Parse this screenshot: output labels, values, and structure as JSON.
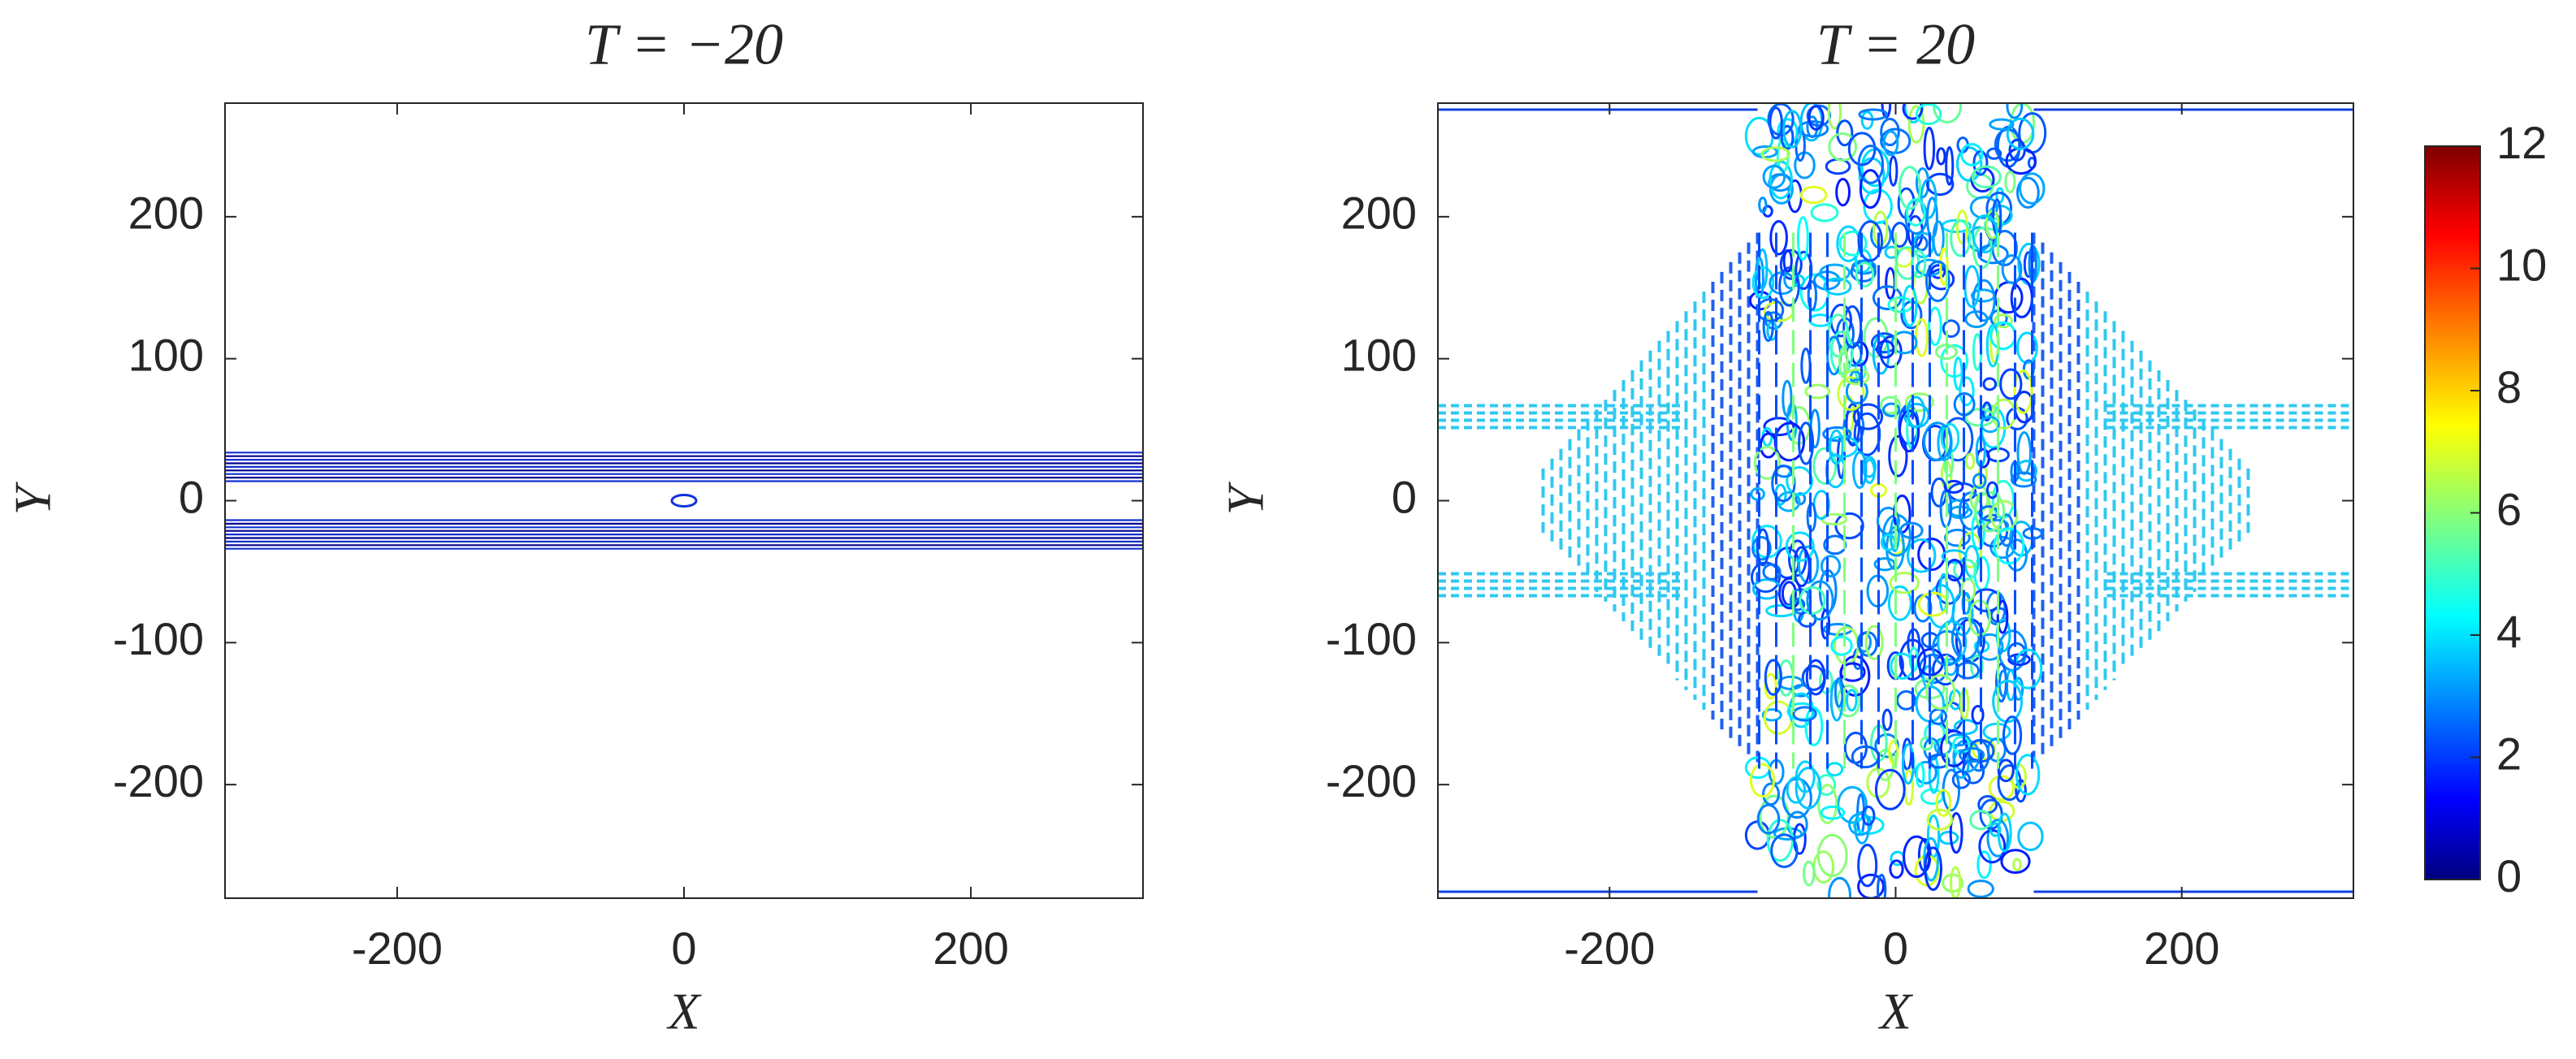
{
  "chart_data": [
    {
      "type": "contour",
      "title": "T = −20",
      "xlabel": "X",
      "ylabel": "Y",
      "xlim": [
        -320,
        320
      ],
      "ylim": [
        -280,
        280
      ],
      "xticks": [
        -200,
        0,
        200
      ],
      "yticks": [
        -200,
        -100,
        0,
        100,
        200
      ]
    },
    {
      "type": "contour",
      "title": "T = 20",
      "xlabel": "X",
      "ylabel": "Y",
      "xlim": [
        -320,
        320
      ],
      "ylim": [
        -280,
        280
      ],
      "xticks": [
        -200,
        0,
        200
      ],
      "yticks": [
        -200,
        -100,
        0,
        100,
        200
      ],
      "colormap": "jet",
      "clim": [
        0,
        12
      ],
      "cticks": [
        0,
        2,
        4,
        6,
        8,
        10,
        12
      ]
    }
  ]
}
